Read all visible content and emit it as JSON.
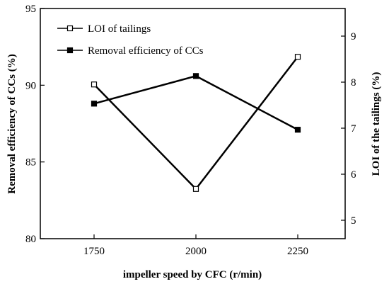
{
  "chart_data": {
    "type": "line",
    "categories": [
      "1750",
      "2000",
      "2250"
    ],
    "x": [
      1750,
      2000,
      2250
    ],
    "xlabel": "impeller speed by CFC (r/min)",
    "ylabel_left": "Removal efficiency of CCs (%)",
    "ylabel_right": "LOI of the tailings (%)",
    "ylim_left": [
      80,
      95
    ],
    "ylim_right": [
      4.6,
      9.6
    ],
    "yticks_left": [
      "80",
      "85",
      "90",
      "95"
    ],
    "yticks_right": [
      "5",
      "6",
      "7",
      "8",
      "9"
    ],
    "grid": false,
    "legend_position": "top-left",
    "series": [
      {
        "name": "LOI of tailings",
        "axis": "right",
        "marker": "open-square",
        "color": "#000000",
        "values": [
          7.95,
          5.68,
          8.55
        ]
      },
      {
        "name": "Removal efficiency of CCs",
        "axis": "left",
        "marker": "filled-square",
        "color": "#000000",
        "values": [
          88.8,
          90.6,
          87.1
        ]
      }
    ]
  }
}
